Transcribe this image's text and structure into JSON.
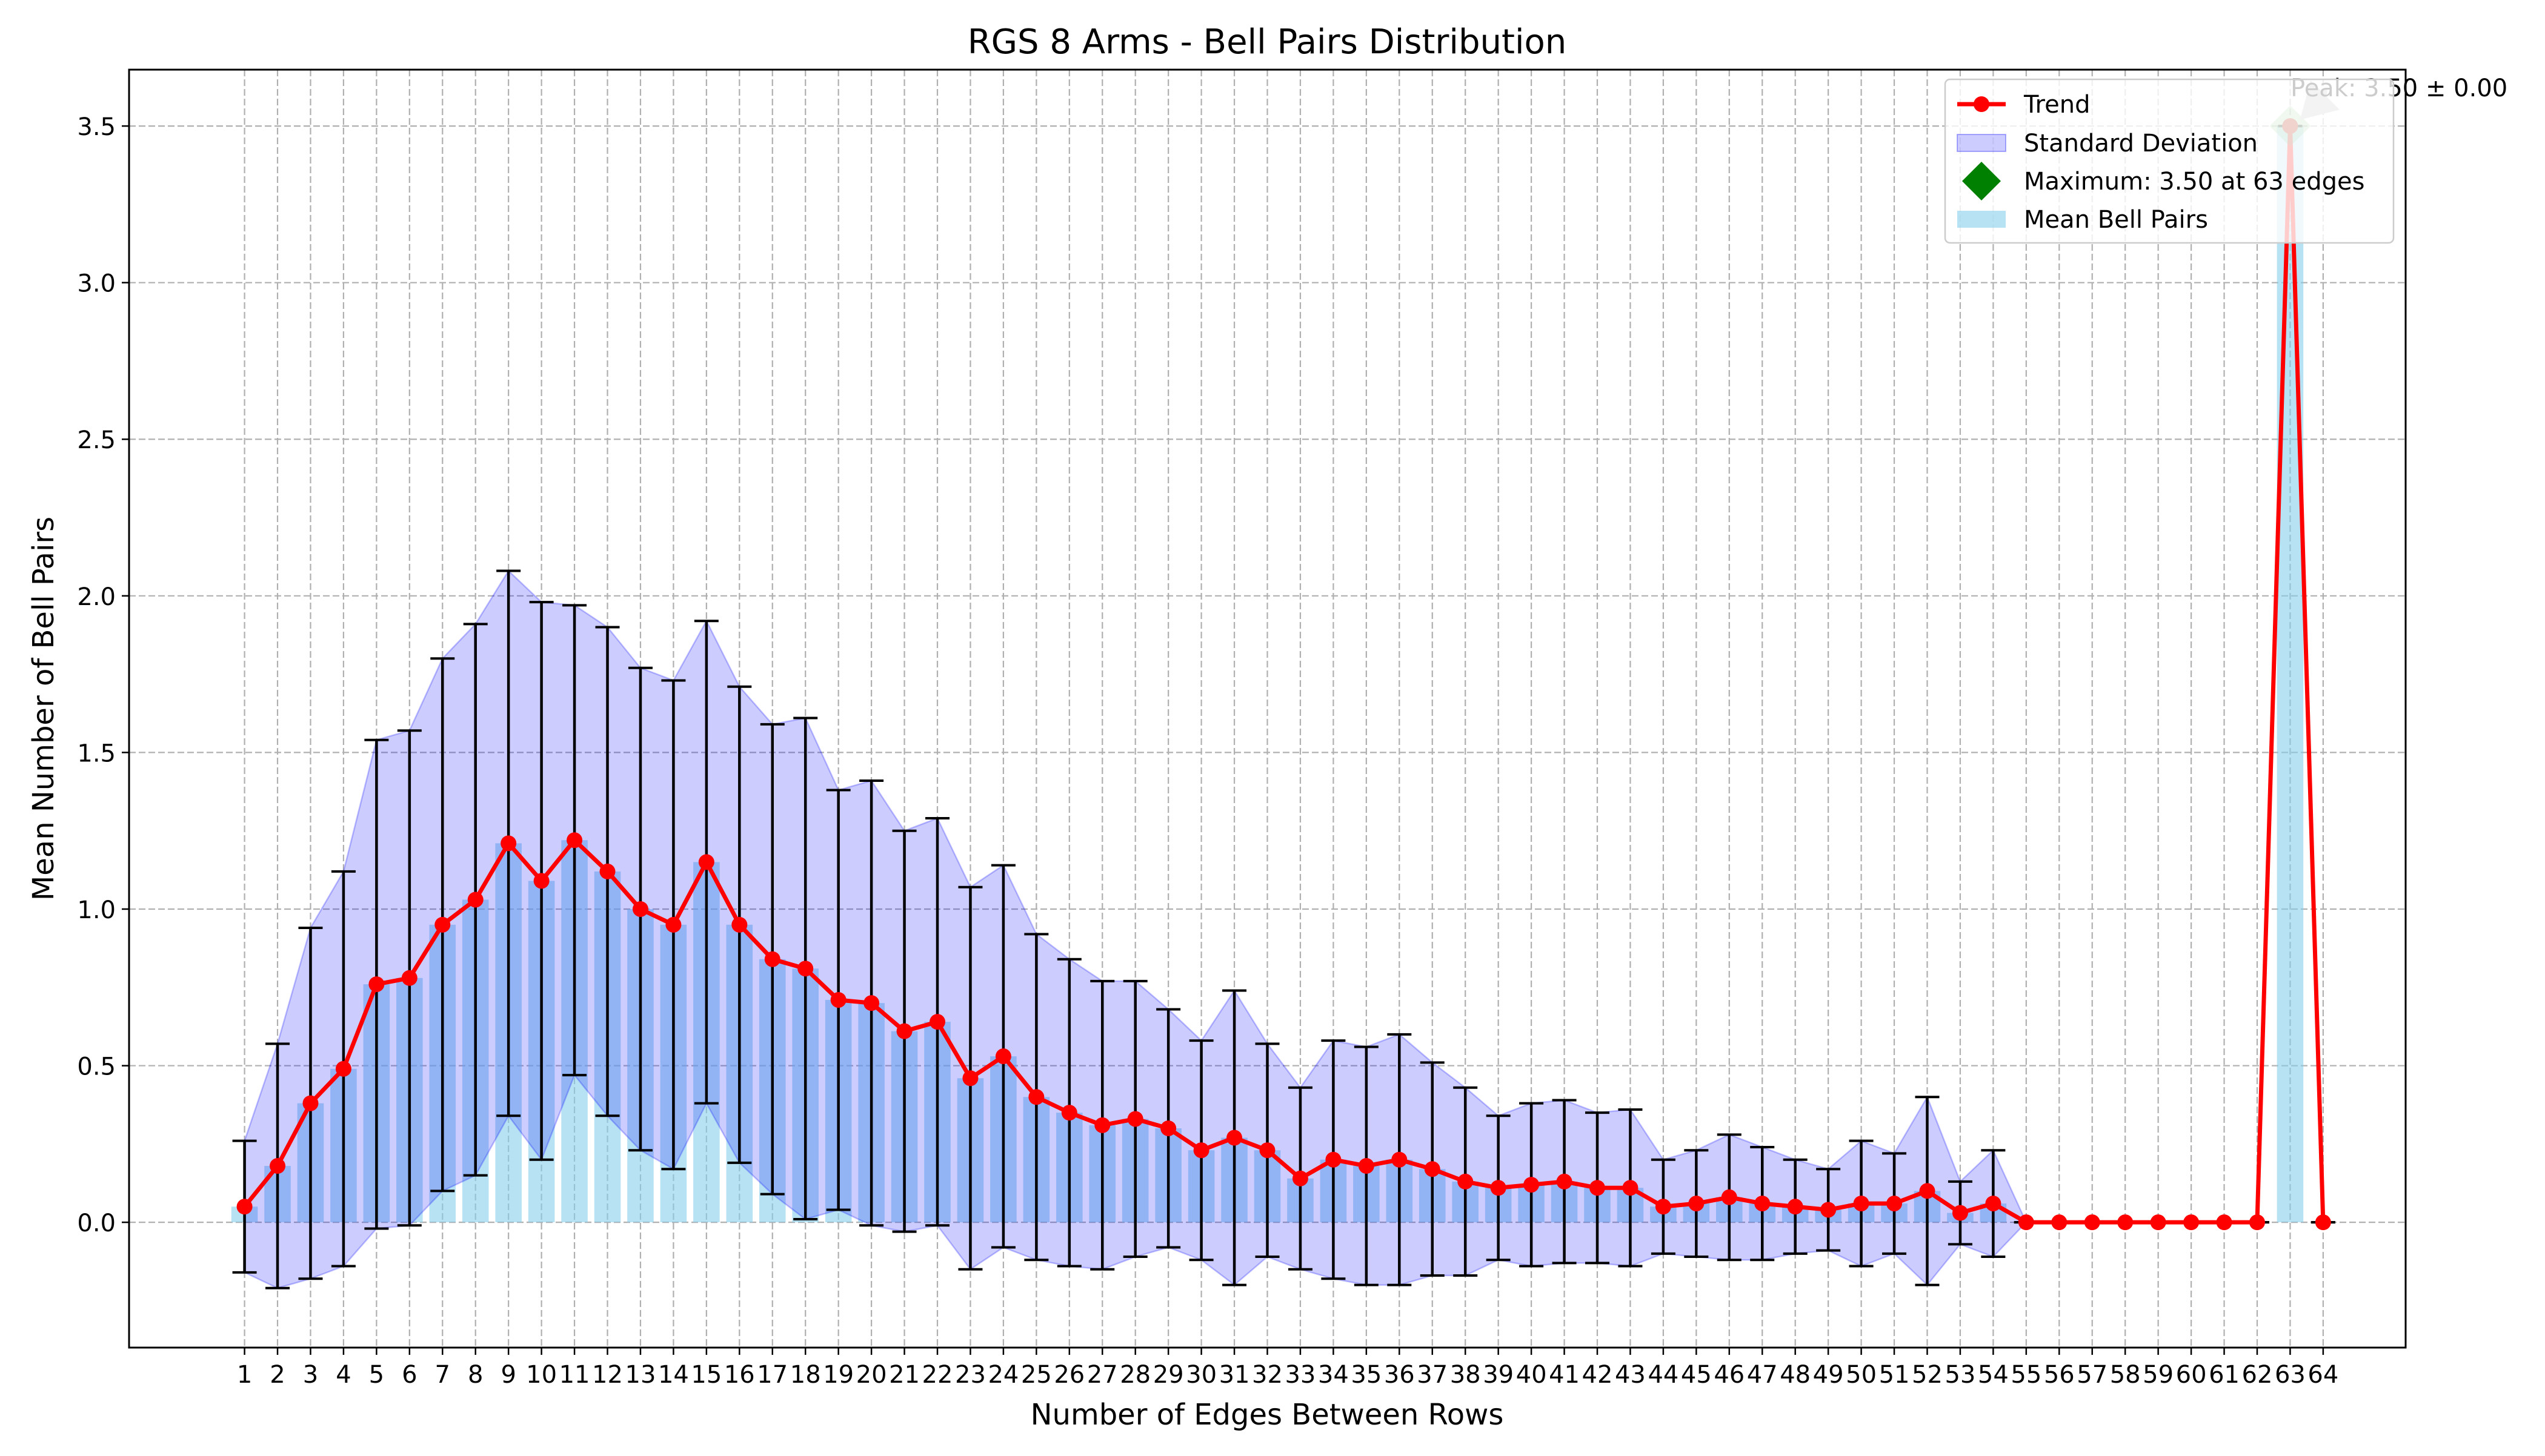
{
  "chart_data": {
    "type": "bar",
    "title": "RGS 8 Arms - Bell Pairs Distribution",
    "xlabel": "Number of Edges Between Rows",
    "ylabel": "Mean Number of Bell Pairs",
    "x": [
      1,
      2,
      3,
      4,
      5,
      6,
      7,
      8,
      9,
      10,
      11,
      12,
      13,
      14,
      15,
      16,
      17,
      18,
      19,
      20,
      21,
      22,
      23,
      24,
      25,
      26,
      27,
      28,
      29,
      30,
      31,
      32,
      33,
      34,
      35,
      36,
      37,
      38,
      39,
      40,
      41,
      42,
      43,
      44,
      45,
      46,
      47,
      48,
      49,
      50,
      51,
      52,
      53,
      54,
      55,
      56,
      57,
      58,
      59,
      60,
      61,
      62,
      63,
      64
    ],
    "xlim": [
      -2.5,
      66.5
    ],
    "ylim": [
      -0.4,
      3.68
    ],
    "yticks": [
      0.0,
      0.5,
      1.0,
      1.5,
      2.0,
      2.5,
      3.0,
      3.5
    ],
    "ytick_labels": [
      "0.0",
      "0.5",
      "1.0",
      "1.5",
      "2.0",
      "2.5",
      "3.0",
      "3.5"
    ],
    "grid": true,
    "legend_position": "top-right",
    "series": [
      {
        "name": "Mean Bell Pairs",
        "kind": "bar",
        "color": "#87ceeb",
        "values": [
          0.05,
          0.18,
          0.38,
          0.49,
          0.76,
          0.78,
          0.95,
          1.03,
          1.21,
          1.09,
          1.22,
          1.12,
          1.0,
          0.95,
          1.15,
          0.95,
          0.84,
          0.81,
          0.71,
          0.7,
          0.61,
          0.64,
          0.46,
          0.53,
          0.4,
          0.35,
          0.31,
          0.33,
          0.3,
          0.23,
          0.27,
          0.23,
          0.14,
          0.2,
          0.18,
          0.2,
          0.17,
          0.13,
          0.11,
          0.12,
          0.13,
          0.11,
          0.11,
          0.05,
          0.06,
          0.08,
          0.06,
          0.05,
          0.04,
          0.06,
          0.06,
          0.1,
          0.03,
          0.06,
          0.0,
          0.0,
          0.0,
          0.0,
          0.0,
          0.0,
          0.0,
          0.0,
          3.5,
          0.0
        ]
      },
      {
        "name": "Standard Deviation",
        "kind": "error",
        "color": "#0000ff",
        "values": [
          0.21,
          0.39,
          0.56,
          0.63,
          0.78,
          0.79,
          0.85,
          0.88,
          0.87,
          0.89,
          0.75,
          0.78,
          0.77,
          0.78,
          0.77,
          0.76,
          0.75,
          0.8,
          0.67,
          0.71,
          0.64,
          0.65,
          0.61,
          0.61,
          0.52,
          0.49,
          0.46,
          0.44,
          0.38,
          0.35,
          0.47,
          0.34,
          0.29,
          0.38,
          0.38,
          0.4,
          0.34,
          0.3,
          0.23,
          0.26,
          0.26,
          0.24,
          0.25,
          0.15,
          0.17,
          0.2,
          0.18,
          0.15,
          0.13,
          0.2,
          0.16,
          0.3,
          0.1,
          0.17,
          0.0,
          0.0,
          0.0,
          0.0,
          0.0,
          0.0,
          0.0,
          0.0,
          0.0,
          0.0
        ]
      },
      {
        "name": "Trend",
        "kind": "line",
        "color": "#ff0000"
      }
    ],
    "maximum": {
      "label": "Maximum: 3.50 at 63 edges",
      "x": 63,
      "y": 3.5,
      "color": "#008000"
    },
    "annotation": {
      "text": "Peak: 3.50 ± 0.00"
    },
    "colors": {
      "bar": "#87ceeb",
      "std_fill": "#0000ff",
      "std_edge": "#0000ff",
      "trend": "#ff0000",
      "errorbar": "#000000",
      "grid": "#b0b0b0",
      "max_marker": "#008000",
      "arrow": "#c0c0c0"
    }
  }
}
